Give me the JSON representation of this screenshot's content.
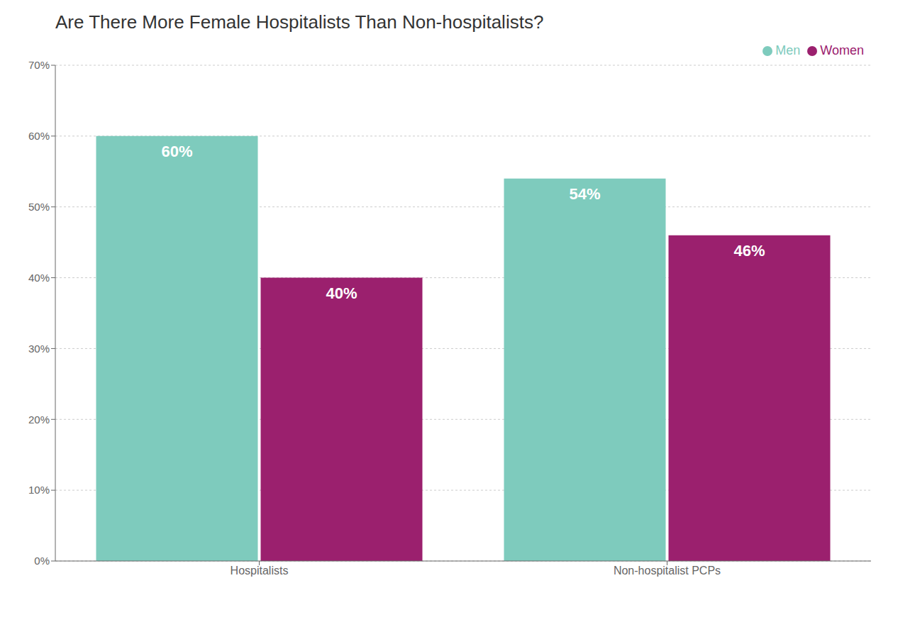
{
  "chart_data": {
    "type": "bar",
    "title": "Are There More Female Hospitalists Than Non-hospitalists?",
    "categories": [
      "Hospitalists",
      "Non-hospitalist PCPs"
    ],
    "series": [
      {
        "name": "Men",
        "color": "#7ecbbd",
        "values": [
          60,
          54
        ],
        "value_labels": [
          "60%",
          "54%"
        ]
      },
      {
        "name": "Women",
        "color": "#9b206e",
        "values": [
          40,
          46
        ],
        "value_labels": [
          "40%",
          "46%"
        ]
      }
    ],
    "ylim": [
      0,
      70
    ],
    "yticks": [
      {
        "value": 0,
        "label": "0%"
      },
      {
        "value": 10,
        "label": "10%"
      },
      {
        "value": 20,
        "label": "20%"
      },
      {
        "value": 30,
        "label": "30%"
      },
      {
        "value": 40,
        "label": "40%"
      },
      {
        "value": 50,
        "label": "50%"
      },
      {
        "value": 60,
        "label": "60%"
      },
      {
        "value": 70,
        "label": "70%"
      }
    ],
    "grid": true,
    "legend": "upper right",
    "data_labels": true
  }
}
